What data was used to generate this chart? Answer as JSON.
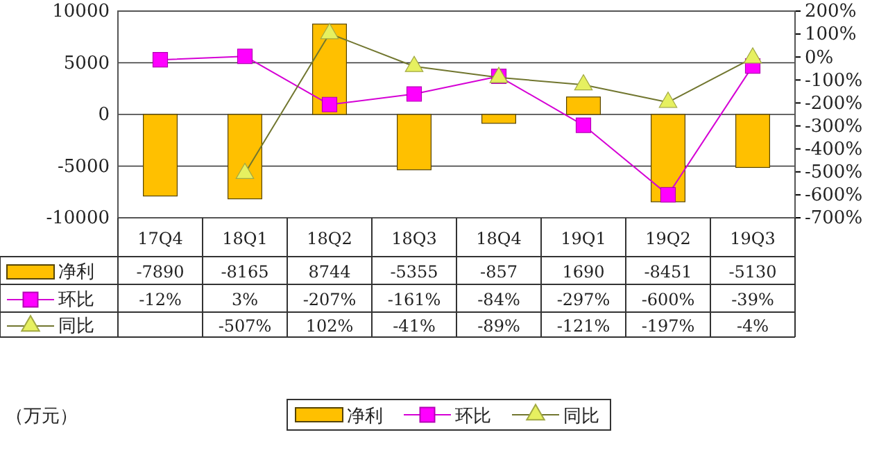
{
  "chart_data": {
    "type": "bar",
    "categories": [
      "17Q4",
      "18Q1",
      "18Q2",
      "18Q3",
      "18Q4",
      "19Q1",
      "19Q2",
      "19Q3"
    ],
    "ylim": [
      -10000,
      10000
    ],
    "yticks": [
      -10000,
      -5000,
      0,
      5000,
      10000
    ],
    "y2lim": [
      -700,
      200
    ],
    "y2ticks": [
      {
        "value": -700,
        "label": "-700%"
      },
      {
        "value": -600,
        "label": "-600%"
      },
      {
        "value": -500,
        "label": "-500%"
      },
      {
        "value": -400,
        "label": "-400%"
      },
      {
        "value": -300,
        "label": "-300%"
      },
      {
        "value": -200,
        "label": "-200%"
      },
      {
        "value": -100,
        "label": "-100%"
      },
      {
        "value": 0,
        "label": "0%"
      },
      {
        "value": 100,
        "label": "100%"
      },
      {
        "value": 200,
        "label": "200%"
      }
    ],
    "grid": "y",
    "legend": "bottom",
    "series": [
      {
        "name": "净利",
        "color": "#ffc000",
        "values": [
          -7890,
          -8165,
          8744,
          -5355,
          -857,
          1690,
          -8451,
          -5130
        ],
        "value_labels": [
          "-7890",
          "-8165",
          "8744",
          "-5355",
          "-857",
          "1690",
          "-8451",
          "-5130"
        ]
      },
      {
        "name": "环比",
        "type": "line",
        "axis": "y2",
        "marker": "square",
        "color": "#ff00ff",
        "values": [
          -12,
          3,
          -207,
          -161,
          -84,
          -297,
          -600,
          -39
        ],
        "value_labels": [
          "-12%",
          "3%",
          "-207%",
          "-161%",
          "-84%",
          "-297%",
          "-600%",
          "-39%"
        ]
      },
      {
        "name": "同比",
        "type": "line",
        "axis": "y2",
        "marker": "triangle",
        "color": "#e6f060",
        "values": [
          null,
          -507,
          102,
          -41,
          -89,
          -121,
          -197,
          -4
        ],
        "value_labels": [
          null,
          "-507%",
          "102%",
          "-41%",
          "-89%",
          "-121%",
          "-197%",
          "-4%"
        ]
      }
    ],
    "annotations": [
      "（万元）"
    ]
  }
}
